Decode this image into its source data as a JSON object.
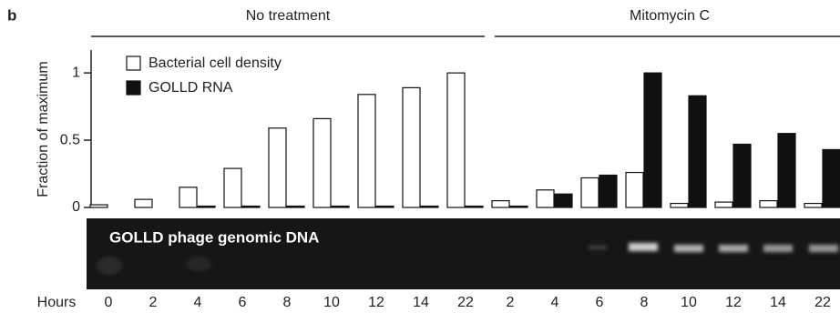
{
  "chart_data": {
    "type": "bar",
    "panel_label": "b",
    "group_labels": [
      "No treatment",
      "Mitomycin C"
    ],
    "ylabel": "Fraction of maximum",
    "xlabel": "Hours",
    "gel_label": "GOLLD phage genomic DNA",
    "categories": [
      "0",
      "2",
      "4",
      "6",
      "8",
      "10",
      "12",
      "14",
      "22",
      "2",
      "4",
      "6",
      "8",
      "10",
      "12",
      "14",
      "22"
    ],
    "series": [
      {
        "name": "Bacterial cell density",
        "color": "#ffffff",
        "values": [
          0.02,
          0.06,
          0.15,
          0.29,
          0.59,
          0.66,
          0.84,
          0.89,
          1.0,
          0.05,
          0.13,
          0.22,
          0.26,
          0.03,
          0.04,
          0.05,
          0.03
        ]
      },
      {
        "name": "GOLLD RNA",
        "color": "#111111",
        "values": [
          0,
          0,
          0.01,
          0.01,
          0.01,
          0.01,
          0.01,
          0.01,
          0.01,
          0.01,
          0.1,
          0.24,
          1.0,
          0.83,
          0.47,
          0.55,
          0.43
        ]
      }
    ],
    "ylim": [
      0,
      1.17
    ],
    "yticks": [
      0,
      0.5,
      1
    ],
    "legend": "top-left"
  }
}
